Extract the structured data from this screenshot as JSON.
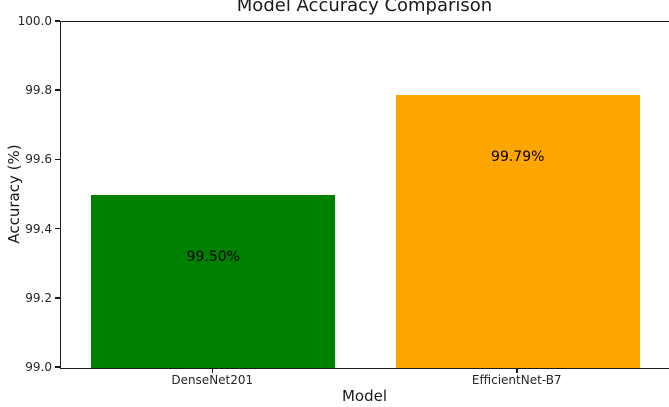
{
  "chart_data": {
    "type": "bar",
    "title": "Model Accuracy Comparison",
    "xlabel": "Model",
    "ylabel": "Accuracy (%)",
    "categories": [
      "DenseNet201",
      "EfficientNet-B7"
    ],
    "values": [
      99.5,
      99.79
    ],
    "bar_labels": [
      "99.50%",
      "99.79%"
    ],
    "bar_colors": [
      "#008000",
      "#FFA500"
    ],
    "ylim": [
      99.0,
      100.0
    ],
    "yticks": [
      100.0,
      99.8,
      99.6,
      99.4,
      99.2,
      99.0
    ],
    "ytick_labels": [
      "100.0",
      "99.8",
      "99.6",
      "99.4",
      "99.2",
      "99.0"
    ],
    "xlim": [
      -0.5,
      1.5
    ],
    "bar_width": 0.8,
    "grid": false,
    "legend": null,
    "text_color": "#000000"
  }
}
